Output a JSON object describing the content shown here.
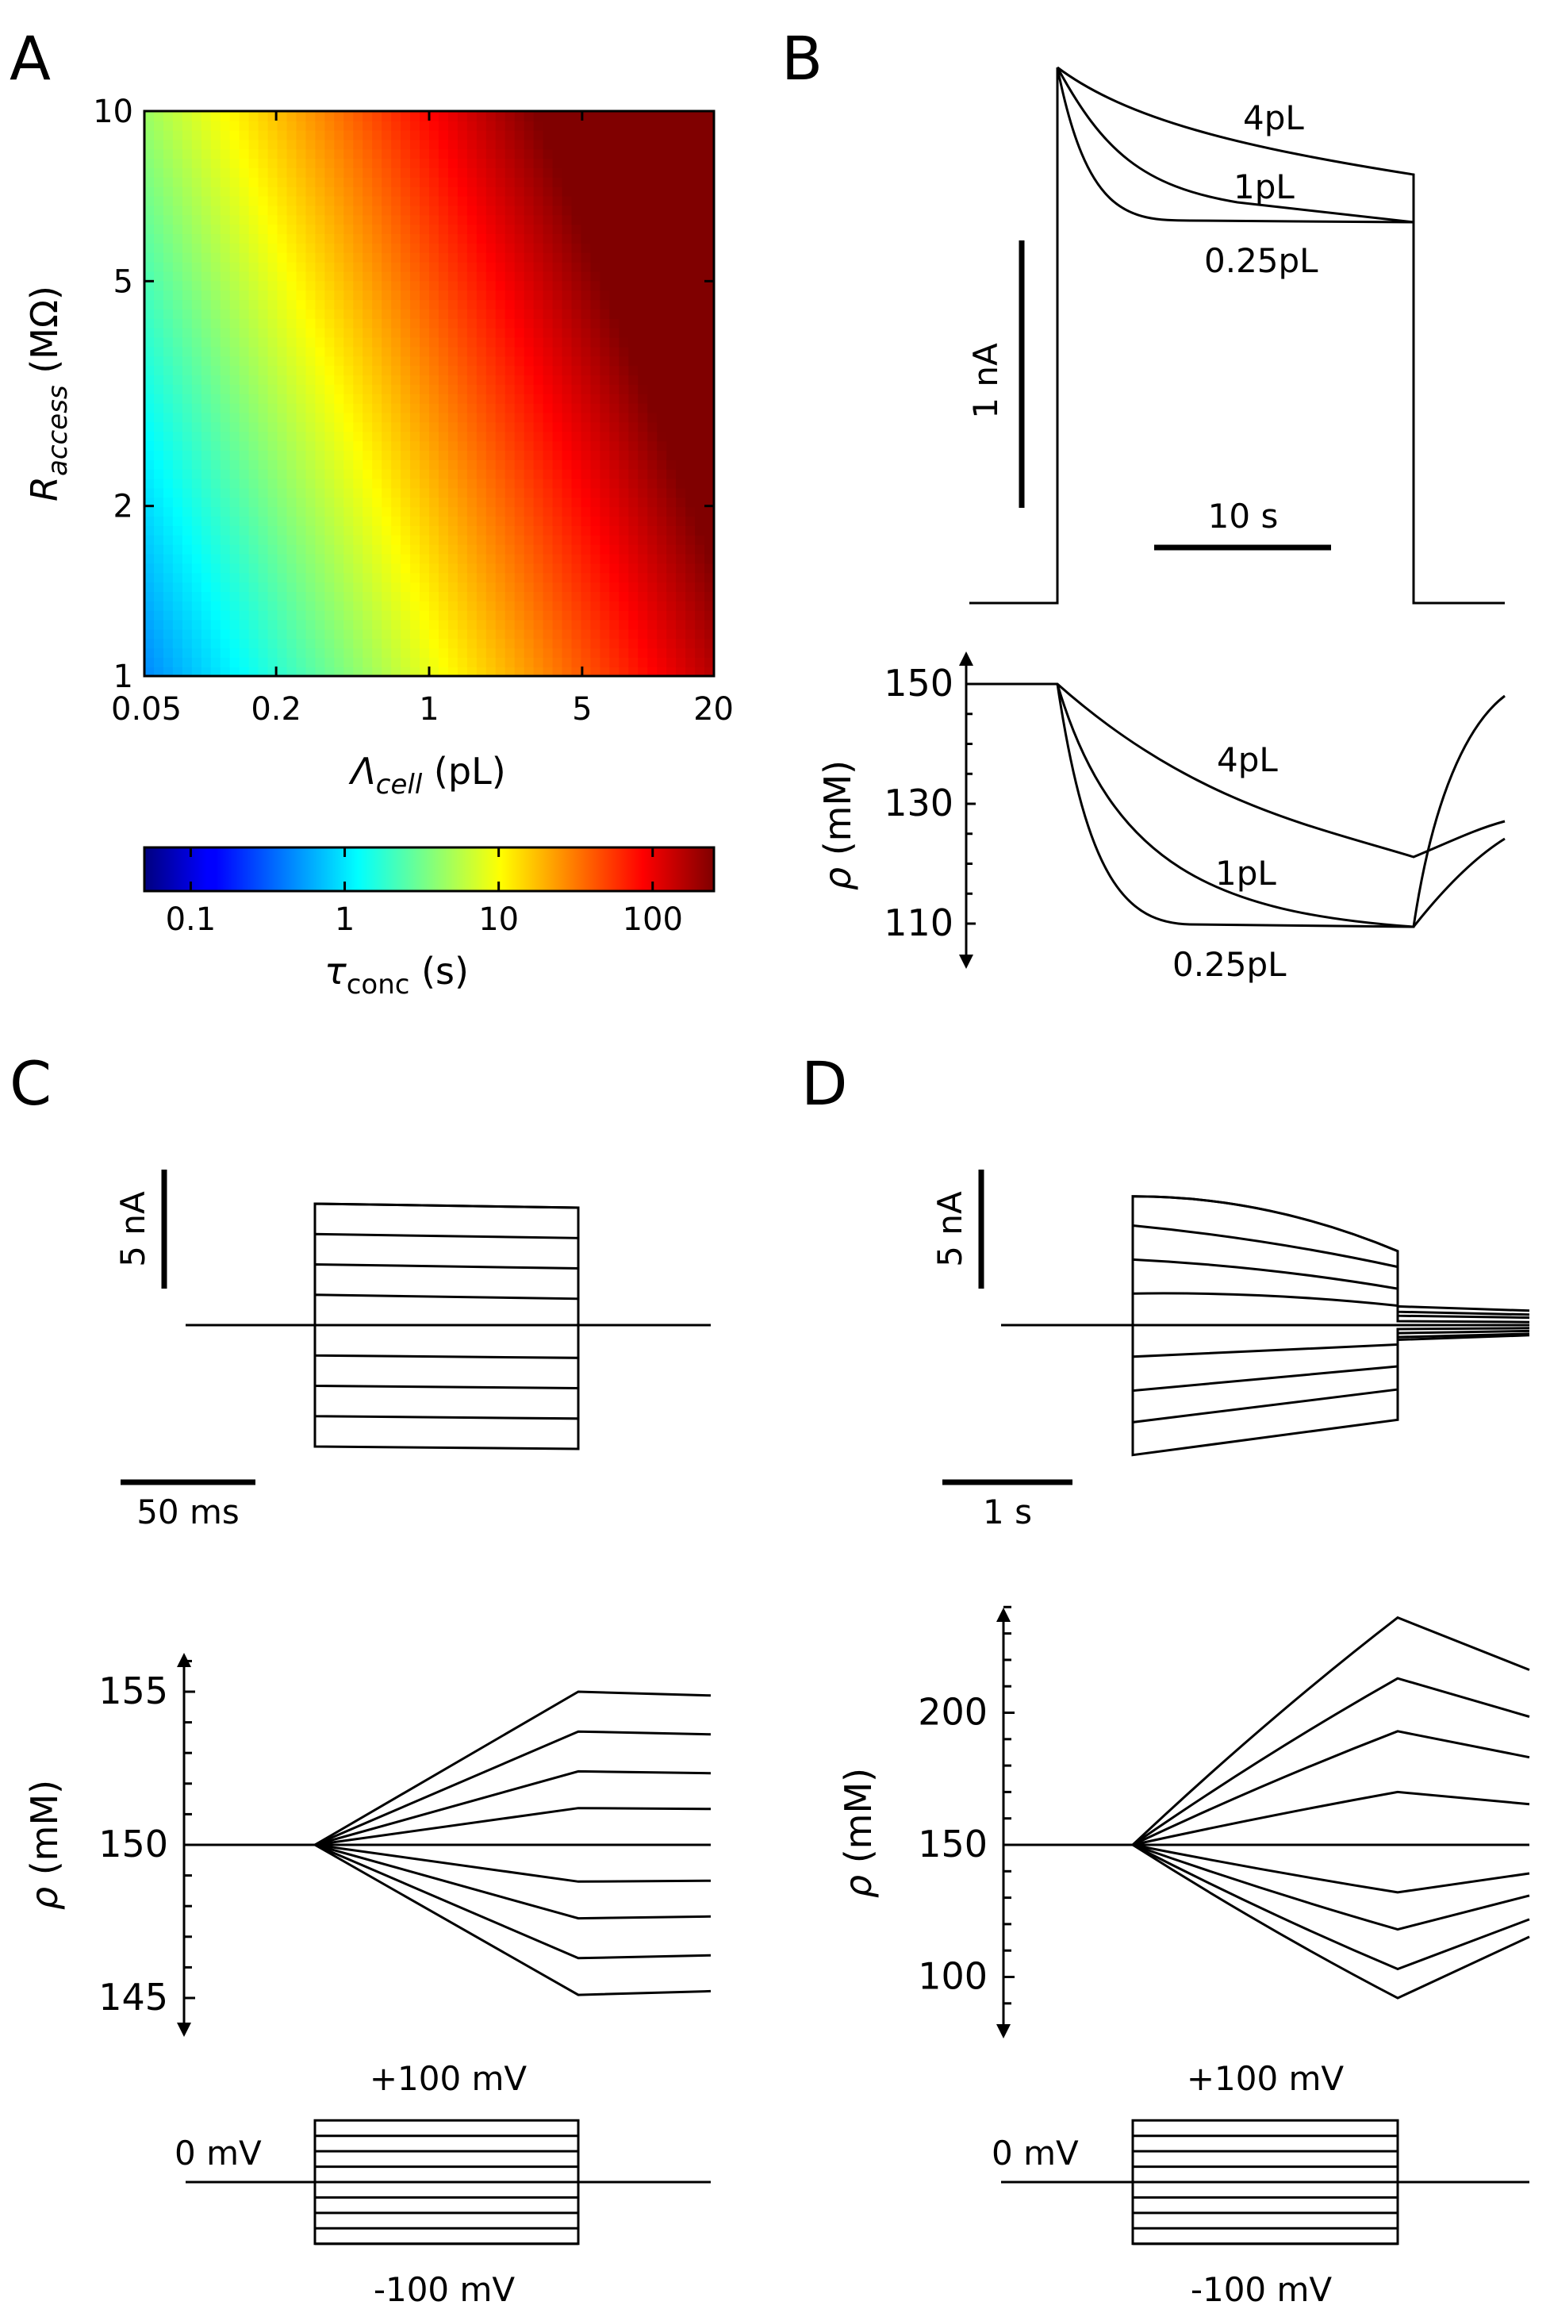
{
  "panels": {
    "a": "A",
    "b": "B",
    "c": "C",
    "d": "D"
  },
  "chart_data": [
    {
      "panel": "A",
      "type": "heatmap",
      "x_ticks": [
        "0.05",
        "0.2",
        "1",
        "5",
        "20"
      ],
      "x_values": [
        0.05,
        0.2,
        1,
        5,
        20
      ],
      "xlim": [
        0.05,
        20
      ],
      "x_scale": "log",
      "y_ticks": [
        "1",
        "2",
        "5",
        "10"
      ],
      "y_values": [
        1,
        2,
        5,
        10
      ],
      "ylim": [
        1,
        10
      ],
      "y_scale": "log",
      "xlabel_main": "Λ",
      "xlabel_sub": "cell",
      "xlabel_unit": " (pL)",
      "ylabel_main": "R",
      "ylabel_sub": "access",
      "ylabel_unit": " (MΩ)",
      "colorbar": {
        "ticks": [
          "0.1",
          "1",
          "10",
          "100"
        ],
        "values": [
          0.1,
          1,
          10,
          100
        ],
        "range": [
          0.05,
          250
        ],
        "scale": "log",
        "colormap": "jet",
        "label_main": "τ",
        "label_sub": "conc",
        "label_unit": " (s)"
      }
    },
    {
      "panel": "B-current",
      "type": "line",
      "series": [
        {
          "name": "4pL",
          "values": [
            0,
            1.2,
            1.0,
            0.9,
            0.83,
            0.79,
            0
          ]
        },
        {
          "name": "1pL",
          "values": [
            0,
            1.2,
            0.88,
            0.78,
            0.76,
            0.75,
            0
          ]
        },
        {
          "name": "0.25pL",
          "values": [
            0,
            1.2,
            0.78,
            0.75,
            0.75,
            0.75,
            0
          ]
        }
      ],
      "scalebar_y": "1 nA",
      "scalebar_x": "10 s"
    },
    {
      "panel": "B-concentration",
      "type": "line",
      "ylabel_main": "ρ",
      "ylabel_unit": " (mM)",
      "y_ticks": [
        "110",
        "130",
        "150"
      ],
      "y_values": [
        110,
        130,
        150
      ],
      "ylim": [
        104,
        154
      ],
      "series": [
        {
          "name": "4pL",
          "values": [
            150,
            150,
            138,
            129,
            121,
            127
          ]
        },
        {
          "name": "1pL",
          "values": [
            150,
            150,
            123,
            113,
            109,
            132
          ]
        },
        {
          "name": "0.25pL",
          "values": [
            150,
            150,
            111,
            109,
            109,
            147
          ]
        }
      ]
    },
    {
      "panel": "C-current",
      "type": "line",
      "levels_nA": [
        10,
        7.5,
        5,
        2.5,
        0,
        -2.5,
        -5,
        -7.5,
        -10
      ],
      "scalebar_y": "5 nA",
      "scalebar_x": "50 ms",
      "highlight_color": "#ff0000"
    },
    {
      "panel": "C-concentration",
      "type": "line",
      "ylabel_main": "ρ",
      "ylabel_unit": " (mM)",
      "y_ticks": [
        "145",
        "150",
        "155"
      ],
      "y_values": [
        145,
        150,
        155
      ],
      "ylim": [
        144.3,
        156.4
      ],
      "final_values": [
        155,
        153.7,
        152.4,
        151.2,
        150,
        148.8,
        147.6,
        146.3,
        145.1
      ]
    },
    {
      "panel": "D-current",
      "type": "line",
      "scalebar_y": "5 nA",
      "scalebar_x": "1 s"
    },
    {
      "panel": "D-concentration",
      "type": "line",
      "ylabel_main": "ρ",
      "ylabel_unit": " (mM)",
      "y_ticks": [
        "100",
        "150",
        "200"
      ],
      "y_values": [
        100,
        150,
        200
      ],
      "ylim": [
        82,
        245
      ],
      "peak_values": [
        236,
        213,
        193,
        170,
        150,
        132,
        118,
        103,
        92
      ]
    },
    {
      "panel": "voltage-protocol",
      "type": "line",
      "labels": {
        "top": "+100 mV",
        "mid": "0 mV",
        "bottom": "-100 mV"
      },
      "levels_mV": [
        100,
        75,
        50,
        25,
        0,
        -25,
        -50,
        -75,
        -100
      ]
    }
  ],
  "colors": {
    "highlight": "#ff0000",
    "trace": "#000000"
  }
}
